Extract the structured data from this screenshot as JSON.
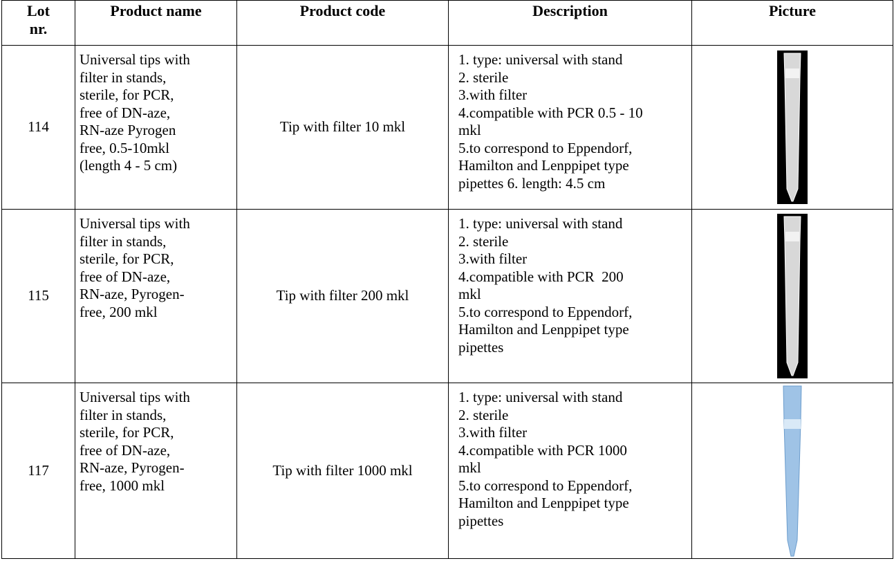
{
  "header": {
    "lot": [
      "Lot",
      "nr."
    ],
    "name": "Product name",
    "code": "Product code",
    "description": "Description",
    "picture": "Picture"
  },
  "rows": [
    {
      "lot": "114",
      "name": [
        "Universal tips with",
        "filter in stands,",
        "sterile, for PCR,",
        "free of DN-aze,",
        "RN-aze Pyrogen",
        "free, 0.5-10mkl",
        "(length 4 - 5 cm)"
      ],
      "code": "Tip with filter 10 mkl",
      "description": [
        "1. type: universal with stand",
        "2. sterile",
        "3.with filter",
        "4.compatible with PCR 0.5 - 10",
        "mkl",
        "5.to correspond to Eppendorf,",
        "Hamilton and Lenppipet type",
        "pipettes 6. length: 4.5 cm"
      ]
    },
    {
      "lot": "115",
      "name": [
        "Universal tips with",
        "filter in stands,",
        "sterile, for PCR,",
        "free of DN-aze,",
        "RN-aze, Pyrogen-",
        "free, 200 mkl"
      ],
      "code": "Tip with filter 200 mkl",
      "description": [
        "1. type: universal with stand",
        "2. sterile",
        "3.with filter",
        "4.compatible with PCR  200",
        "mkl",
        "5.to correspond to Eppendorf,",
        "Hamilton and Lenppipet type",
        "pipettes"
      ]
    },
    {
      "lot": "117",
      "name": [
        "Universal tips with",
        "filter in stands,",
        "sterile, for PCR,",
        "free of DN-aze,",
        "RN-aze, Pyrogen-",
        "free, 1000 mkl"
      ],
      "code": "Tip with filter 1000 mkl",
      "description": [
        "1. type: universal with stand",
        "2. sterile",
        "3.with filter",
        "4.compatible with PCR 1000",
        "mkl",
        "5.to correspond to Eppendorf,",
        "Hamilton and Lenppipet type",
        "pipettes"
      ]
    }
  ]
}
